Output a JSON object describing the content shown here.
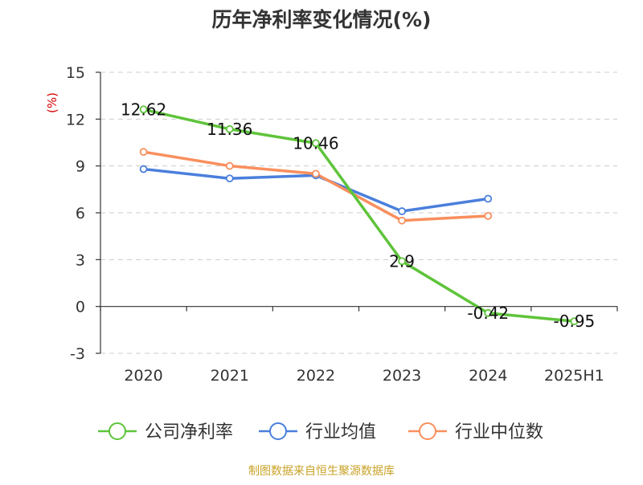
{
  "chart_data": {
    "type": "line",
    "title": "历年净利率变化情况(%)",
    "ylabel": "(%)",
    "categories": [
      "2020",
      "2021",
      "2022",
      "2023",
      "2024",
      "2025H1"
    ],
    "ylim": [
      -3,
      15
    ],
    "yticks": [
      -3,
      0,
      3,
      6,
      9,
      12,
      15
    ],
    "grid": true,
    "legend_position": "bottom",
    "series": [
      {
        "name": "公司净利率",
        "color": "#5ec43a",
        "values": [
          12.62,
          11.36,
          10.46,
          2.9,
          -0.42,
          -0.95
        ],
        "data_labels": [
          "12.62",
          "11.36",
          "10.46",
          "2.9",
          "-0.42",
          "-0.95"
        ]
      },
      {
        "name": "行业均值",
        "color": "#4a7fdc",
        "values": [
          8.8,
          8.2,
          8.4,
          6.1,
          6.9,
          null
        ]
      },
      {
        "name": "行业中位数",
        "color": "#f98f5d",
        "values": [
          9.9,
          9.0,
          8.5,
          5.5,
          5.8,
          null
        ]
      }
    ]
  },
  "source": "制图数据来自恒生聚源数据库"
}
